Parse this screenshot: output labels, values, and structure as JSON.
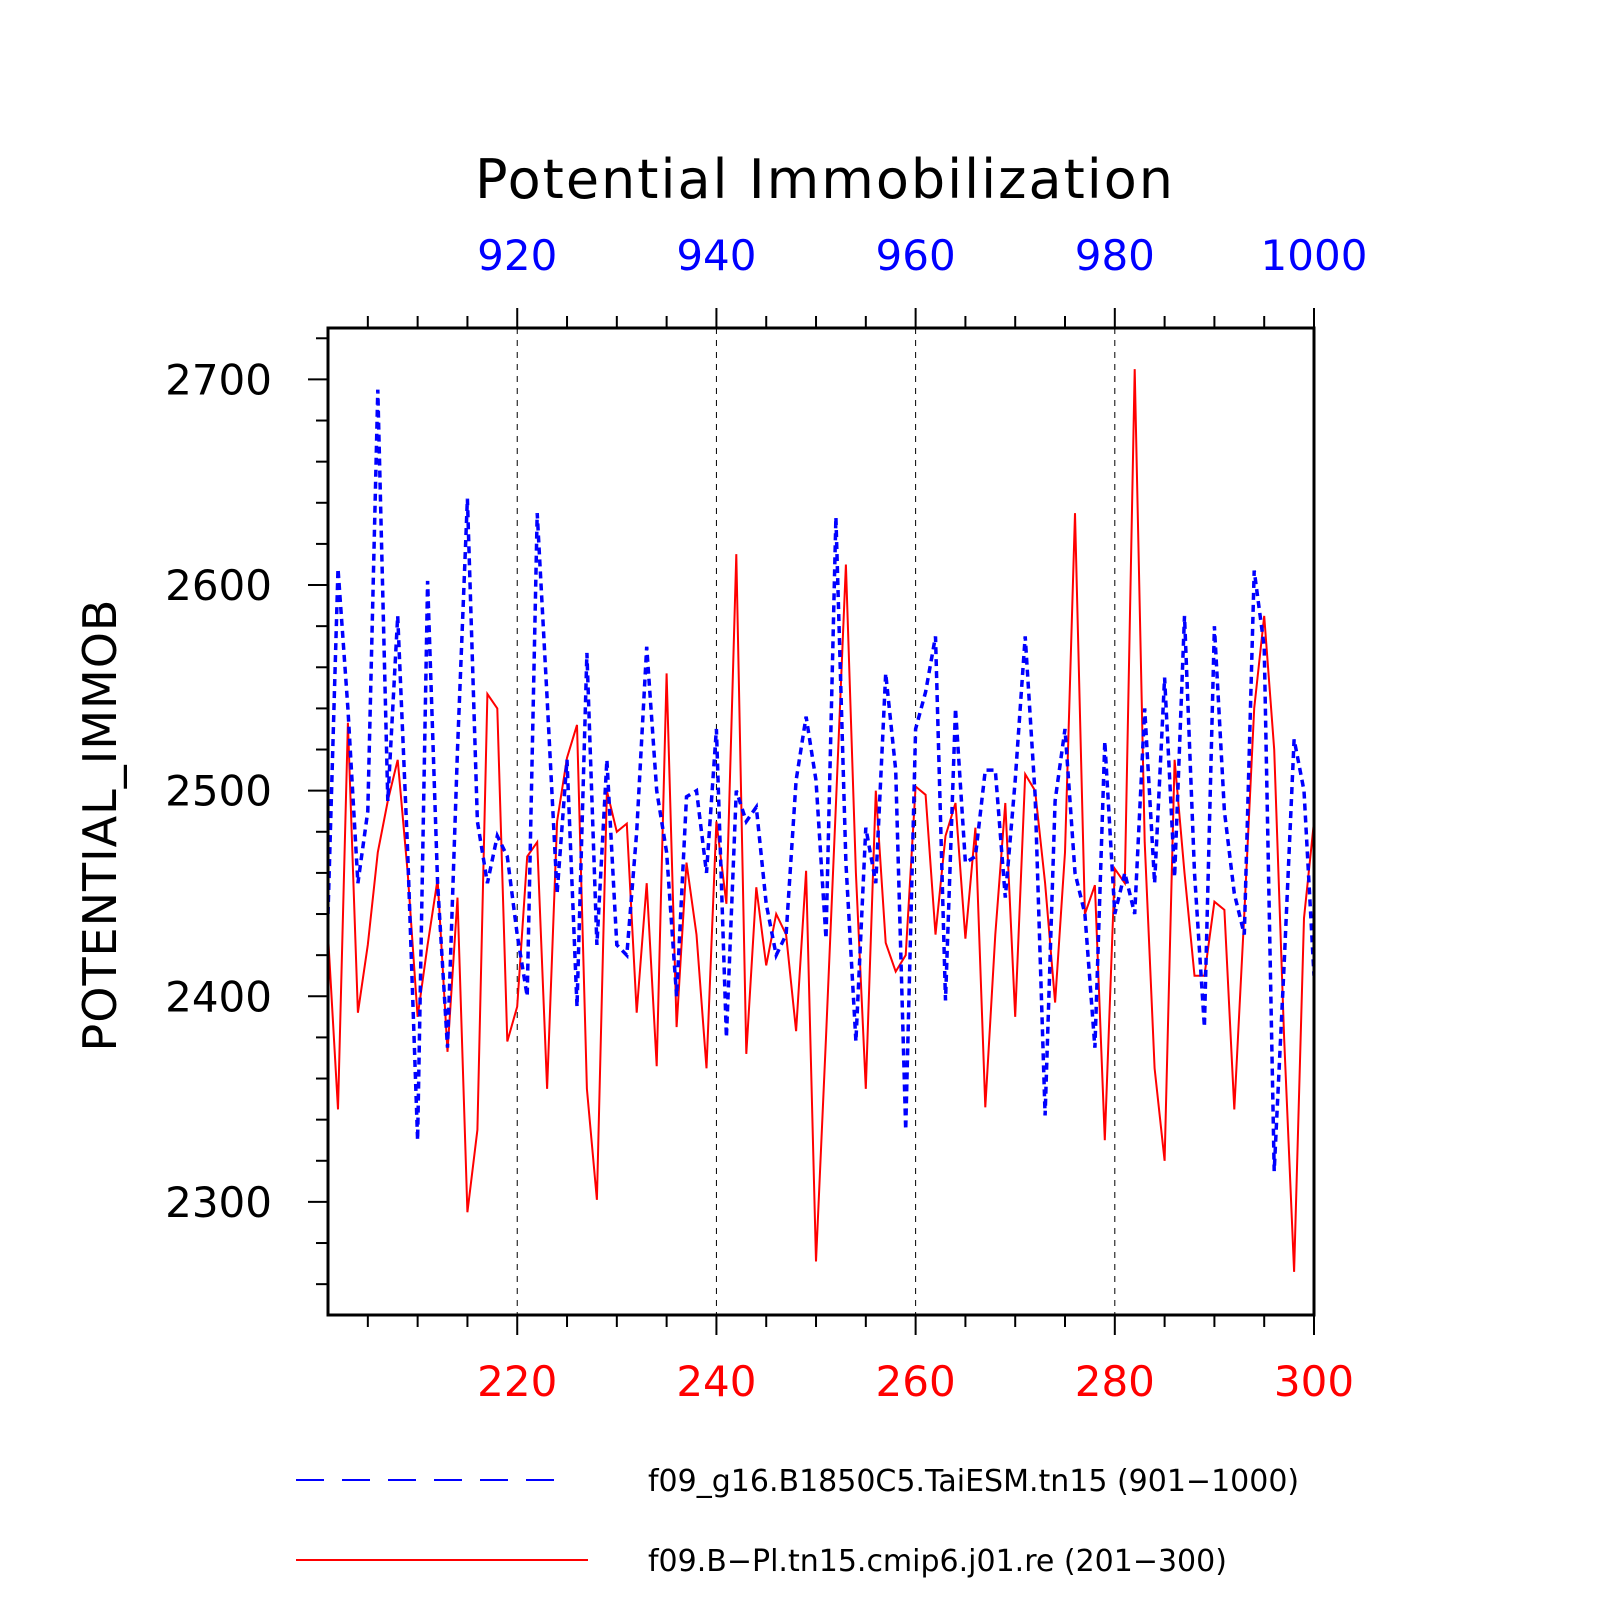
{
  "chart_data": {
    "type": "line",
    "title": "Potential Immobilization",
    "ylabel": "POTENTIAL_IMMOB",
    "ylim": [
      2245,
      2725
    ],
    "yticks": [
      2300,
      2400,
      2500,
      2600,
      2700
    ],
    "grid": "vertical dashed at major x ticks",
    "legend_position": "bottom",
    "top_axis": {
      "color": "#0000ff",
      "range": [
        901,
        1000
      ],
      "ticks": [
        920,
        940,
        960,
        980,
        1000
      ]
    },
    "bottom_axis": {
      "color": "#ff0000",
      "range": [
        201,
        300
      ],
      "ticks": [
        220,
        240,
        260,
        280,
        300
      ]
    },
    "series": [
      {
        "name": "f09_g16.B1850C5.TaiESM.tn15 (901−1000)",
        "axis": "top",
        "color": "#0000ff",
        "style": "dashed",
        "x_start": 901,
        "values": [
          2440,
          2608,
          2540,
          2455,
          2490,
          2695,
          2495,
          2585,
          2470,
          2330,
          2602,
          2455,
          2375,
          2520,
          2642,
          2485,
          2455,
          2478,
          2468,
          2430,
          2400,
          2635,
          2545,
          2450,
          2515,
          2395,
          2567,
          2425,
          2515,
          2425,
          2420,
          2480,
          2570,
          2500,
          2470,
          2400,
          2497,
          2500,
          2460,
          2530,
          2380,
          2500,
          2485,
          2492,
          2445,
          2420,
          2430,
          2505,
          2536,
          2505,
          2428,
          2633,
          2465,
          2378,
          2482,
          2455,
          2557,
          2510,
          2335,
          2530,
          2548,
          2575,
          2398,
          2540,
          2465,
          2468,
          2510,
          2510,
          2448,
          2505,
          2575,
          2498,
          2342,
          2495,
          2530,
          2460,
          2440,
          2375,
          2524,
          2440,
          2460,
          2440,
          2540,
          2455,
          2555,
          2458,
          2585,
          2460,
          2385,
          2580,
          2490,
          2450,
          2430,
          2607,
          2570,
          2315,
          2415,
          2525,
          2500,
          2410
        ]
      },
      {
        "name": "f09.B−Pl.tn15.cmip6.j01.re (201−300)",
        "axis": "bottom",
        "color": "#ff0000",
        "style": "solid",
        "x_start": 201,
        "values": [
          2430,
          2345,
          2533,
          2392,
          2425,
          2470,
          2495,
          2515,
          2460,
          2390,
          2425,
          2457,
          2373,
          2448,
          2295,
          2335,
          2547,
          2540,
          2378,
          2395,
          2468,
          2475,
          2355,
          2485,
          2516,
          2532,
          2355,
          2301,
          2500,
          2480,
          2484,
          2392,
          2455,
          2366,
          2557,
          2385,
          2465,
          2430,
          2365,
          2485,
          2445,
          2615,
          2372,
          2453,
          2415,
          2440,
          2430,
          2383,
          2461,
          2271,
          2380,
          2493,
          2610,
          2460,
          2355,
          2500,
          2426,
          2412,
          2420,
          2502,
          2498,
          2430,
          2478,
          2494,
          2428,
          2482,
          2346,
          2430,
          2494,
          2390,
          2508,
          2500,
          2455,
          2397,
          2470,
          2635,
          2440,
          2454,
          2330,
          2462,
          2455,
          2705,
          2475,
          2365,
          2320,
          2515,
          2460,
          2410,
          2410,
          2446,
          2442,
          2345,
          2440,
          2540,
          2585,
          2520,
          2380,
          2266,
          2438,
          2485
        ]
      }
    ]
  }
}
